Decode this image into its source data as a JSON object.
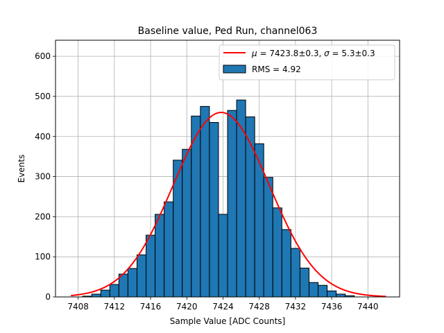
{
  "chart_data": {
    "type": "bar",
    "title": "Baseline value, Ped Run, channel063",
    "xlabel": "Sample Value [ADC Counts]",
    "ylabel": "Events",
    "xlim": [
      7405.5,
      7443.5
    ],
    "ylim": [
      0,
      640
    ],
    "xticks": [
      7408,
      7412,
      7416,
      7420,
      7424,
      7428,
      7432,
      7436,
      7440
    ],
    "yticks": [
      0,
      100,
      200,
      300,
      400,
      500,
      600
    ],
    "grid": true,
    "legend_position": "top-right",
    "bin_width": 1,
    "bin_centers": [
      7409,
      7410,
      7411,
      7412,
      7413,
      7414,
      7415,
      7416,
      7417,
      7418,
      7419,
      7420,
      7421,
      7422,
      7423,
      7424,
      7425,
      7426,
      7427,
      7428,
      7429,
      7430,
      7431,
      7432,
      7433,
      7434,
      7435,
      7436,
      7437,
      7438
    ],
    "series": [
      {
        "name": "RMS = 4.92",
        "type": "histogram",
        "color": "#1f77b4",
        "values": [
          2,
          7,
          17,
          31,
          57,
          71,
          105,
          154,
          206,
          237,
          341,
          368,
          451,
          475,
          435,
          206,
          465,
          491,
          449,
          382,
          298,
          222,
          168,
          121,
          72,
          36,
          29,
          15,
          7,
          3
        ]
      },
      {
        "name_parts": [
          "μ",
          " = 7423.8±0.3, ",
          "σ",
          " = 5.3±0.3"
        ],
        "type": "line",
        "color": "#ff0000",
        "fit": "gaussian",
        "mu": 7423.8,
        "sigma": 5.3,
        "amplitude": 460,
        "x_range": [
          7407.2,
          7442.0
        ]
      }
    ]
  }
}
